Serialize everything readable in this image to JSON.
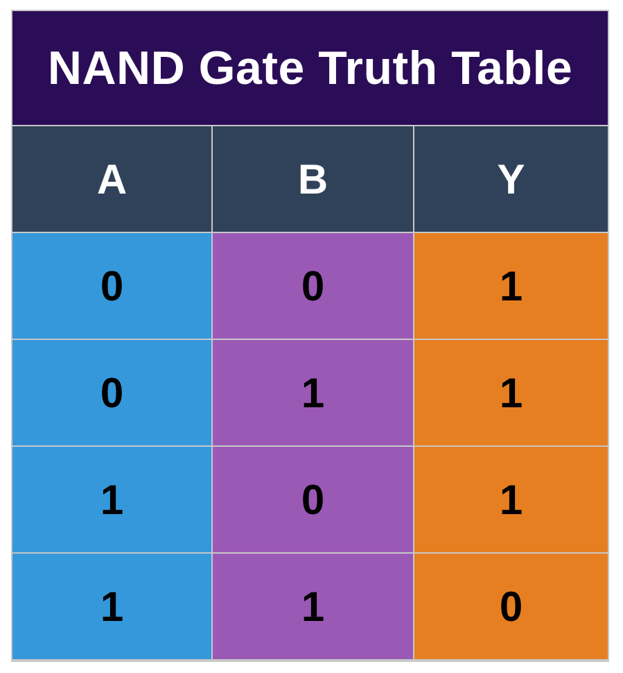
{
  "title": "NAND Gate Truth Table",
  "headers": [
    "A",
    "B",
    "Y"
  ],
  "rows": [
    [
      "0",
      "0",
      "1"
    ],
    [
      "0",
      "1",
      "1"
    ],
    [
      "1",
      "0",
      "1"
    ],
    [
      "1",
      "1",
      "0"
    ]
  ],
  "colors": {
    "title_bg": "#2b0d57",
    "header_bg": "#2f4259",
    "col_a_bg": "#3498db",
    "col_b_bg": "#9b59b6",
    "col_y_bg": "#e67e22"
  }
}
